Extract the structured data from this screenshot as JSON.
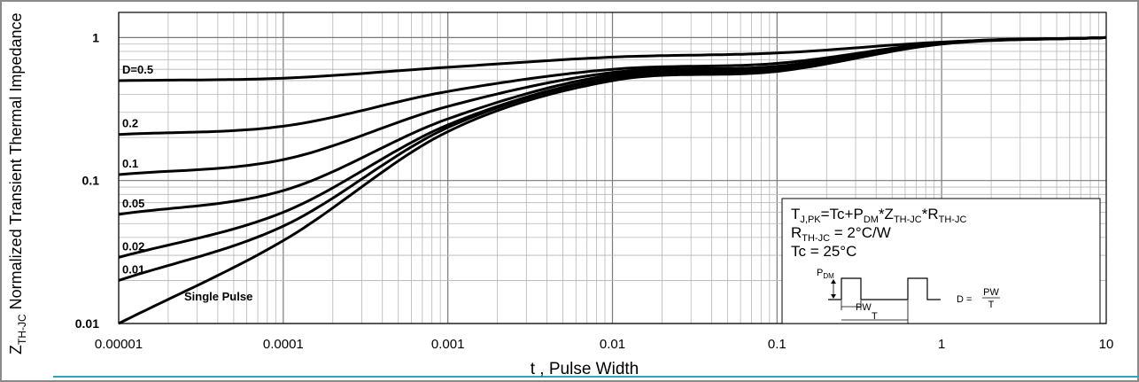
{
  "chart_data": {
    "type": "line",
    "title": "",
    "xlabel": "t , Pulse Width",
    "ylabel_main": "Z",
    "ylabel_sub": "TH-JC",
    "ylabel_rest": " Normalized Transient Thermal Impedance",
    "x_scale": "log",
    "y_scale": "log",
    "xlim": [
      1e-05,
      10
    ],
    "ylim": [
      0.01,
      1.5
    ],
    "grid": true,
    "x_ticks": [
      "0.00001",
      "0.0001",
      "0.001",
      "0.01",
      "0.1",
      "1",
      "10"
    ],
    "y_ticks": [
      "0.01",
      "0.1",
      "1"
    ],
    "series": [
      {
        "name": "D=0.5",
        "x": [
          1e-05,
          0.0001,
          0.001,
          0.01,
          0.1,
          1,
          10
        ],
        "y": [
          0.5,
          0.52,
          0.62,
          0.73,
          0.78,
          0.93,
          1.0
        ]
      },
      {
        "name": "0.2",
        "x": [
          1e-05,
          0.0001,
          0.001,
          0.01,
          0.1,
          1,
          10
        ],
        "y": [
          0.21,
          0.24,
          0.42,
          0.6,
          0.66,
          0.92,
          1.0
        ]
      },
      {
        "name": "0.1",
        "x": [
          1e-05,
          0.0001,
          0.001,
          0.01,
          0.1,
          1,
          10
        ],
        "y": [
          0.11,
          0.14,
          0.33,
          0.57,
          0.63,
          0.92,
          1.0
        ]
      },
      {
        "name": "0.05",
        "x": [
          1e-05,
          0.0001,
          0.001,
          0.01,
          0.1,
          1,
          10
        ],
        "y": [
          0.058,
          0.085,
          0.27,
          0.55,
          0.61,
          0.91,
          1.0
        ]
      },
      {
        "name": "0.02",
        "x": [
          1e-05,
          0.0001,
          0.001,
          0.01,
          0.1,
          1,
          10
        ],
        "y": [
          0.029,
          0.06,
          0.245,
          0.53,
          0.6,
          0.91,
          1.0
        ]
      },
      {
        "name": "0.01",
        "x": [
          1e-05,
          0.0001,
          0.001,
          0.01,
          0.1,
          1,
          10
        ],
        "y": [
          0.02,
          0.048,
          0.235,
          0.52,
          0.595,
          0.91,
          1.0
        ]
      },
      {
        "name": "Single Pulse",
        "x": [
          1e-05,
          0.0001,
          0.001,
          0.01,
          0.1,
          1,
          10
        ],
        "y": [
          0.01,
          0.038,
          0.22,
          0.5,
          0.58,
          0.9,
          1.0
        ]
      }
    ],
    "annotation": {
      "eq1_a": "T",
      "eq1_a_sub": "J,PK",
      "eq1_b": "=Tc+P",
      "eq1_b_sub": "DM",
      "eq1_c": "*Z",
      "eq1_c_sub": "TH-JC",
      "eq1_d": "*R",
      "eq1_d_sub": "TH-JC",
      "eq2_a": "R",
      "eq2_a_sub": "TH-JC",
      "eq2_b": " = 2°C/W",
      "eq3": "Tc = 25°C",
      "pdm": "P",
      "pdm_sub": "DM",
      "pw": "PW",
      "t": "T",
      "duty_left": "D = ",
      "duty_num": "PW",
      "duty_den": "T"
    }
  }
}
